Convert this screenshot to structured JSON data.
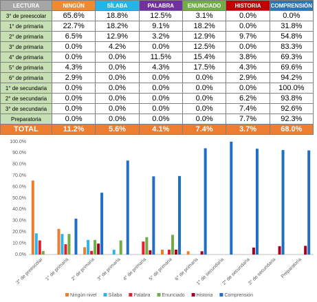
{
  "table": {
    "header": [
      "LECTURA",
      "NINGÚN",
      "SÍLABA",
      "PALABRA",
      "ENUNCIADO",
      "HISTORIA",
      "COMPRENSIÓN"
    ],
    "rows": [
      [
        "3° de preescolar",
        "65.6%",
        "18.8%",
        "12.5%",
        "3.1%",
        "0.0%",
        "0.0%"
      ],
      [
        "1° de primaria",
        "22.7%",
        "18.2%",
        "9.1%",
        "18.2%",
        "0.0%",
        "31.8%"
      ],
      [
        "2° de primaria",
        "6.5%",
        "12.9%",
        "3.2%",
        "12.9%",
        "9.7%",
        "54.8%"
      ],
      [
        "3° de primaria",
        "0.0%",
        "4.2%",
        "0.0%",
        "12.5%",
        "0.0%",
        "83.3%"
      ],
      [
        "4° de primaria",
        "0.0%",
        "0.0%",
        "11.5%",
        "15.4%",
        "3.8%",
        "69.3%"
      ],
      [
        "5° de primaria",
        "4.3%",
        "0.0%",
        "4.3%",
        "17.5%",
        "4.3%",
        "69.6%"
      ],
      [
        "6° de primaria",
        "2.9%",
        "0.0%",
        "0.0%",
        "0.0%",
        "2.9%",
        "94.2%"
      ],
      [
        "1° de secundaria",
        "0.0%",
        "0.0%",
        "0.0%",
        "0.0%",
        "0.0%",
        "100.0%"
      ],
      [
        "2° de secundaria",
        "0.0%",
        "0.0%",
        "0.0%",
        "0.0%",
        "6.2%",
        "93.8%"
      ],
      [
        "3° de secundaria",
        "0.0%",
        "0.0%",
        "0.0%",
        "0.0%",
        "7.4%",
        "92.6%"
      ],
      [
        "Preparatoria",
        "0.0%",
        "0.0%",
        "0.0%",
        "0.0%",
        "7.7%",
        "92.3%"
      ],
      [
        "TOTAL",
        "11.2%",
        "5.6%",
        "4.1%",
        "7.4%",
        "3.7%",
        "68.0%"
      ]
    ]
  },
  "chart_data": {
    "type": "bar",
    "categories": [
      "3° de preescolar",
      "1° de primaria",
      "2° de primaria",
      "3° de primaria",
      "4° de primaria",
      "5° de primaria",
      "6° de primaria",
      "1° de secundaria",
      "2° de secundaria",
      "3° de secundaria",
      "Preparatoria"
    ],
    "series": [
      {
        "name": "Ningún nivel",
        "color": "#ED7D31",
        "values": [
          65.6,
          22.7,
          6.5,
          0.0,
          0.0,
          4.3,
          2.9,
          0.0,
          0.0,
          0.0,
          0.0
        ]
      },
      {
        "name": "Sílaba",
        "color": "#2EB5E8",
        "values": [
          18.8,
          18.2,
          12.9,
          4.2,
          0.0,
          0.0,
          0.0,
          0.0,
          0.0,
          0.0,
          0.0
        ]
      },
      {
        "name": "Palabra",
        "color": "#E0202A",
        "values": [
          12.5,
          9.1,
          3.2,
          0.0,
          11.5,
          4.3,
          0.0,
          0.0,
          0.0,
          0.0,
          0.0
        ]
      },
      {
        "name": "Enunciado",
        "color": "#70AD47",
        "values": [
          3.1,
          18.2,
          12.9,
          12.5,
          15.4,
          17.5,
          0.0,
          0.0,
          0.0,
          0.0,
          0.0
        ]
      },
      {
        "name": "Historia",
        "color": "#A50021",
        "values": [
          0.0,
          0.0,
          9.7,
          0.0,
          3.8,
          4.3,
          2.9,
          0.0,
          6.2,
          7.4,
          7.7
        ]
      },
      {
        "name": "Comprensión",
        "color": "#1F6FC5",
        "values": [
          0.0,
          31.8,
          54.8,
          83.3,
          69.3,
          69.6,
          94.2,
          100.0,
          93.8,
          92.6,
          92.3
        ]
      }
    ],
    "ylim": [
      0,
      100
    ],
    "yticks": [
      {
        "value": 0,
        "label": "0.0%"
      },
      {
        "value": 10,
        "label": "10.0%"
      },
      {
        "value": 20,
        "label": "20.0%"
      },
      {
        "value": 30,
        "label": "30.0%"
      },
      {
        "value": 40,
        "label": "40.0%"
      },
      {
        "value": 50,
        "label": "50.0%"
      },
      {
        "value": 60,
        "label": "60.0%"
      },
      {
        "value": 70,
        "label": "70.0%"
      },
      {
        "value": 80,
        "label": "80.0%"
      },
      {
        "value": 90,
        "label": "90.0%"
      },
      {
        "value": 100,
        "label": "100.0%"
      }
    ],
    "grid": false
  }
}
